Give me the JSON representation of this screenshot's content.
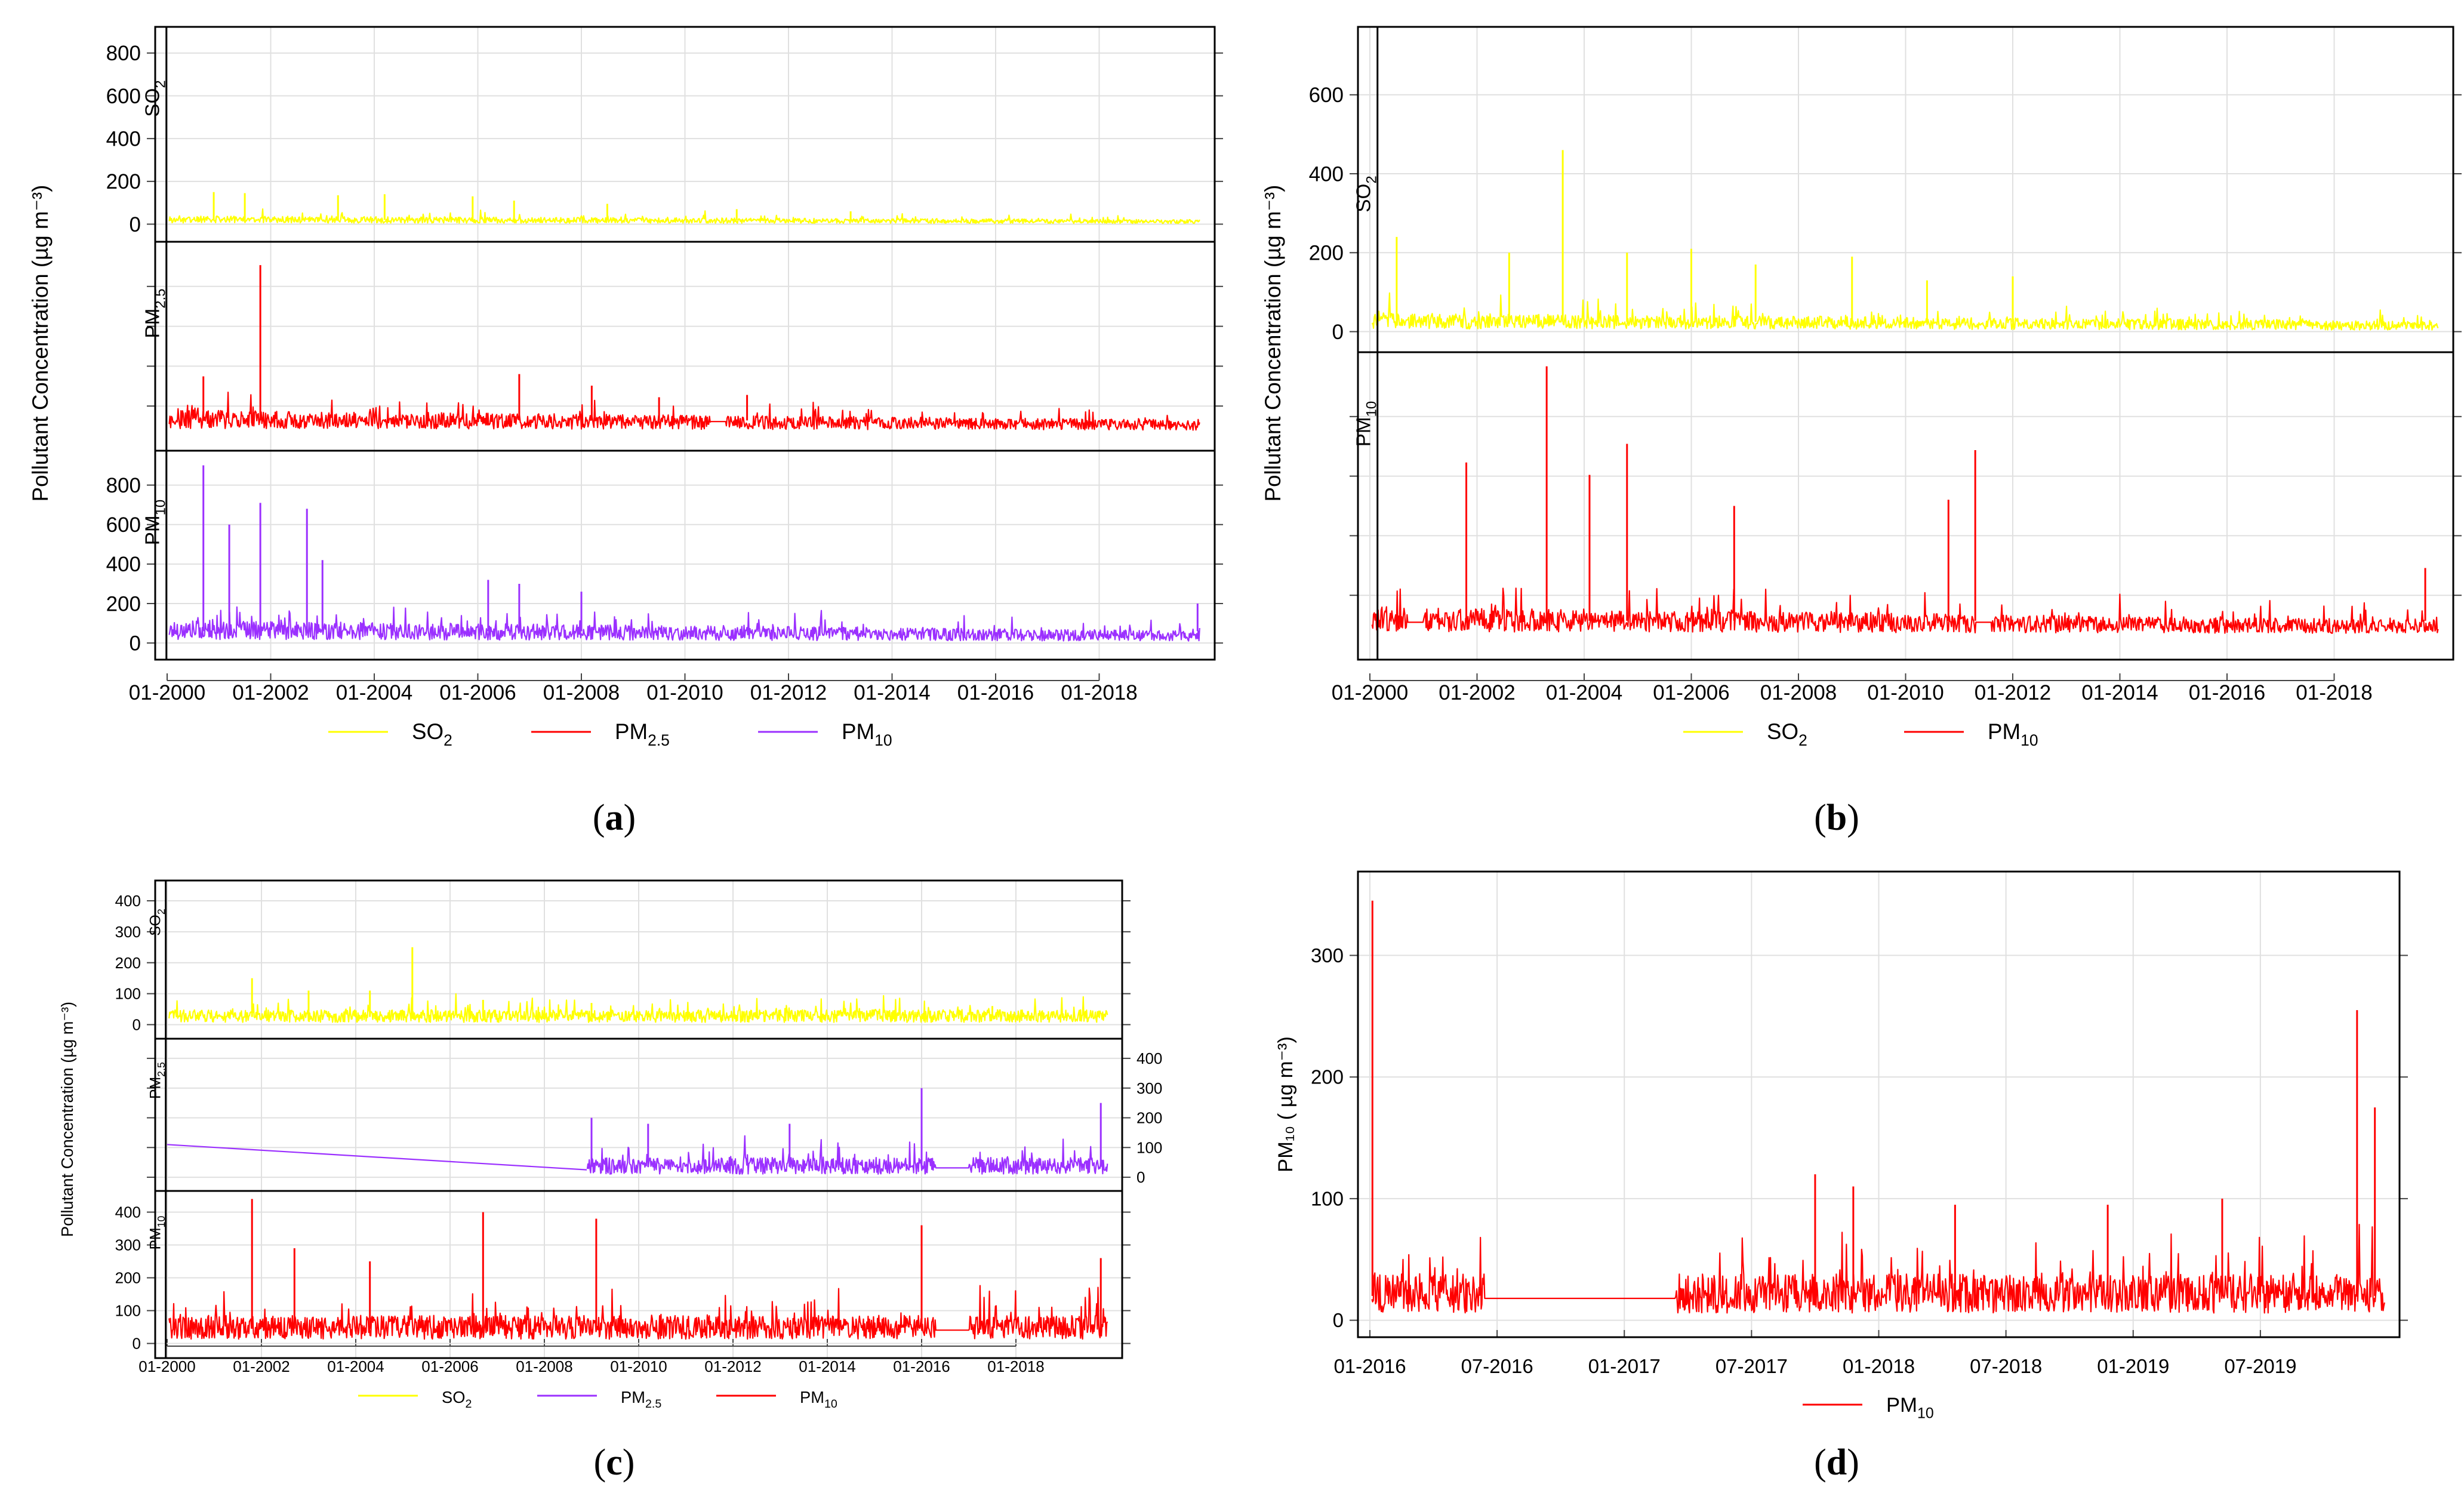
{
  "chart_data": [
    {
      "panel": "(a)",
      "panel_letter": "a",
      "type": "line",
      "ylabel": "Pollutant Concentration (µg m⁻³)",
      "x_ticks": [
        "01-2000",
        "01-2002",
        "01-2004",
        "01-2006",
        "01-2008",
        "01-2010",
        "01-2012",
        "01-2014",
        "01-2016",
        "01-2018"
      ],
      "x_range": [
        2000.0,
        2020.0
      ],
      "legend": [
        {
          "name": "SO",
          "sub": "2",
          "color": "#ffff00"
        },
        {
          "name": "PM",
          "sub": "2.5",
          "color": "#ff0000"
        },
        {
          "name": "PM",
          "sub": "10",
          "color": "#9b30ff"
        }
      ],
      "subplots": [
        {
          "strip": "SO",
          "sub": "2",
          "color": "#ffff00",
          "ylim": [
            -60,
            900
          ],
          "y_ticks": [
            "0",
            "200",
            "400",
            "600",
            "800"
          ],
          "tick_side": "left",
          "series": {
            "baseline": 20,
            "spikes": [
              [
                2000.9,
                150
              ],
              [
                2001.5,
                145
              ],
              [
                2003.3,
                135
              ],
              [
                2004.2,
                140
              ],
              [
                2005.9,
                130
              ],
              [
                2006.7,
                110
              ],
              [
                2008.5,
                95
              ],
              [
                2011.0,
                70
              ],
              [
                2013.2,
                60
              ]
            ]
          }
        },
        {
          "strip": "PM",
          "sub": "2.5",
          "color": "#ff0000",
          "ylim": [
            -30,
            400
          ],
          "y_ticks": [],
          "tick_side": "left",
          "series": {
            "baseline": 25,
            "spikes": [
              [
                2000.7,
                120
              ],
              [
                2001.8,
                360
              ],
              [
                2006.8,
                125
              ],
              [
                2008.2,
                100
              ],
              [
                2009.5,
                75
              ],
              [
                2011.2,
                80
              ]
            ],
            "gaps": [
              [
                2010.5,
                2010.8
              ]
            ]
          }
        },
        {
          "strip": "PM",
          "sub": "10",
          "color": "#9b30ff",
          "ylim": [
            -60,
            950
          ],
          "y_ticks": [
            "0",
            "200",
            "400",
            "600",
            "800"
          ],
          "tick_side": "left",
          "series": {
            "baseline": 60,
            "spikes": [
              [
                2000.7,
                900
              ],
              [
                2001.2,
                600
              ],
              [
                2001.8,
                710
              ],
              [
                2002.7,
                680
              ],
              [
                2003.0,
                420
              ],
              [
                2006.2,
                320
              ],
              [
                2006.8,
                300
              ],
              [
                2008.0,
                260
              ],
              [
                2019.9,
                200
              ]
            ],
            "gaps": []
          }
        }
      ]
    },
    {
      "panel": "(b)",
      "panel_letter": "b",
      "type": "line",
      "ylabel": "Pollutant Concentration (µg m⁻³)",
      "x_ticks": [
        "01-2000",
        "01-2002",
        "01-2004",
        "01-2006",
        "01-2008",
        "01-2010",
        "01-2012",
        "01-2014",
        "01-2016",
        "01-2018"
      ],
      "x_range": [
        2000.0,
        2020.0
      ],
      "legend": [
        {
          "name": "SO",
          "sub": "2",
          "color": "#ffff00"
        },
        {
          "name": "PM",
          "sub": "10",
          "color": "#ff0000"
        }
      ],
      "subplots": [
        {
          "strip": "SO",
          "sub": "2",
          "color": "#ffff00",
          "ylim": [
            -40,
            760
          ],
          "y_ticks": [
            "0",
            "200",
            "400",
            "600"
          ],
          "tick_side": "left",
          "series": {
            "baseline": 25,
            "spikes": [
              [
                2000.5,
                240
              ],
              [
                2002.6,
                200
              ],
              [
                2003.6,
                460
              ],
              [
                2004.8,
                200
              ],
              [
                2006.0,
                210
              ],
              [
                2007.2,
                170
              ],
              [
                2009.0,
                190
              ],
              [
                2010.4,
                130
              ],
              [
                2012.0,
                140
              ]
            ]
          }
        },
        {
          "strip": "PM",
          "sub": "10",
          "color": "#ff0000",
          "ylim": [
            -60,
            900
          ],
          "y_ticks": [],
          "tick_side": "left",
          "series": {
            "baseline": 50,
            "spikes": [
              [
                2001.8,
                560
              ],
              [
                2003.3,
                870
              ],
              [
                2004.1,
                520
              ],
              [
                2004.8,
                620
              ],
              [
                2006.8,
                420
              ],
              [
                2010.8,
                440
              ],
              [
                2011.3,
                600
              ],
              [
                2019.7,
                220
              ]
            ],
            "gaps": [
              [
                2000.7,
                2001.0
              ],
              [
                2011.3,
                2011.6
              ]
            ]
          }
        }
      ]
    },
    {
      "panel": "(c)",
      "panel_letter": "c",
      "type": "line",
      "ylabel": "Pollutant Concentration (µg m⁻³)",
      "x_ticks": [
        "01-2000",
        "01-2002",
        "01-2004",
        "01-2006",
        "01-2008",
        "01-2010",
        "01-2012",
        "01-2014",
        "01-2016",
        "01-2018"
      ],
      "x_range": [
        2000.0,
        2020.0
      ],
      "legend": [
        {
          "name": "SO",
          "sub": "2",
          "color": "#ffff00"
        },
        {
          "name": "PM",
          "sub": "2.5",
          "color": "#9b30ff"
        },
        {
          "name": "PM",
          "sub": "10",
          "color": "#ff0000"
        }
      ],
      "subplots": [
        {
          "strip": "SO",
          "sub": "2",
          "color": "#ffff00",
          "ylim": [
            -30,
            450
          ],
          "y_ticks": [
            "0",
            "100",
            "200",
            "300",
            "400"
          ],
          "tick_side": "left",
          "series": {
            "baseline": 25,
            "spikes": [
              [
                2001.8,
                150
              ],
              [
                2003.0,
                110
              ],
              [
                2004.3,
                110
              ],
              [
                2005.2,
                250
              ],
              [
                2006.7,
                80
              ],
              [
                2009.0,
                70
              ],
              [
                2017.5,
                60
              ]
            ]
          }
        },
        {
          "strip": "PM",
          "sub": "2.5",
          "color": "#9b30ff",
          "ylim": [
            -30,
            450
          ],
          "y_ticks": [
            "0",
            "100",
            "200",
            "300",
            "400"
          ],
          "tick_side": "right",
          "series": {
            "baseline": 35,
            "spikes": [
              [
                2009.0,
                200
              ],
              [
                2010.2,
                180
              ],
              [
                2013.2,
                180
              ],
              [
                2016.0,
                300
              ],
              [
                2019.8,
                250
              ]
            ],
            "interp": [
              [
                2000.0,
                110
              ],
              [
                2008.9,
                25
              ]
            ],
            "start": 2008.9,
            "gaps": [
              [
                2016.3,
                2017.0
              ]
            ]
          }
        },
        {
          "strip": "PM",
          "sub": "10",
          "color": "#ff0000",
          "ylim": [
            -30,
            450
          ],
          "y_ticks": [
            "0",
            "100",
            "200",
            "300",
            "400"
          ],
          "tick_side": "left",
          "series": {
            "baseline": 45,
            "spikes": [
              [
                2001.8,
                440
              ],
              [
                2002.7,
                290
              ],
              [
                2004.3,
                250
              ],
              [
                2006.7,
                400
              ],
              [
                2009.1,
                380
              ],
              [
                2016.0,
                360
              ],
              [
                2019.8,
                260
              ]
            ],
            "gaps": [
              [
                2016.3,
                2017.0
              ]
            ]
          }
        }
      ]
    },
    {
      "panel": "(d)",
      "panel_letter": "d",
      "type": "line",
      "ylabel": "PM₁₀ ( µg m⁻³)",
      "x_ticks": [
        "01-2016",
        "07-2016",
        "01-2017",
        "07-2017",
        "01-2018",
        "07-2018",
        "01-2019",
        "07-2019"
      ],
      "x_range": [
        2016.0,
        2020.0
      ],
      "y_ticks": [
        "0",
        "100",
        "200",
        "300"
      ],
      "ylim": [
        -10,
        365
      ],
      "legend": [
        {
          "name": "PM",
          "sub": "10",
          "color": "#ff0000"
        }
      ],
      "series": {
        "baseline": 20,
        "spikes": [
          [
            2016.01,
            345
          ],
          [
            2017.75,
            120
          ],
          [
            2017.9,
            110
          ],
          [
            2018.3,
            95
          ],
          [
            2018.9,
            95
          ],
          [
            2019.35,
            100
          ],
          [
            2019.88,
            255
          ],
          [
            2019.95,
            175
          ]
        ],
        "interp_ranges": [
          [
            2016.45,
            2017.2
          ]
        ],
        "gaps": []
      }
    }
  ]
}
